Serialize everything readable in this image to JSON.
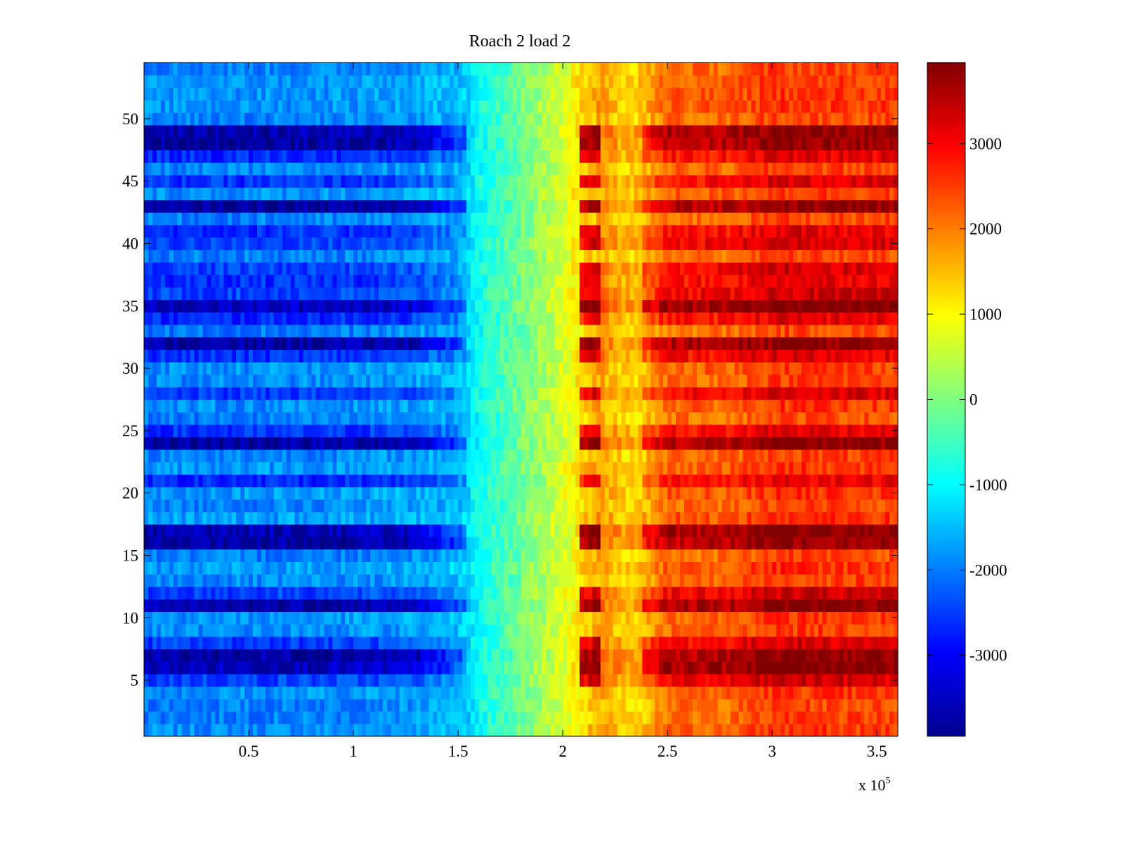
{
  "chart_data": {
    "type": "heatmap",
    "title": "Roach 2 load 2",
    "xlabel": "",
    "ylabel": "",
    "x_multiplier_label": {
      "base": "x 10",
      "exponent": "5"
    },
    "xlim": [
      0,
      3.6
    ],
    "ylim": [
      0.5,
      54.5
    ],
    "x_ticks": [
      0.5,
      1,
      1.5,
      2,
      2.5,
      3,
      3.5
    ],
    "x_tick_labels": [
      "0.5",
      "1",
      "1.5",
      "2",
      "2.5",
      "3",
      "3.5"
    ],
    "y_ticks": [
      5,
      10,
      15,
      20,
      25,
      30,
      35,
      40,
      45,
      50
    ],
    "y_tick_labels": [
      "5",
      "10",
      "15",
      "20",
      "25",
      "30",
      "35",
      "40",
      "45",
      "50"
    ],
    "rows": 54,
    "colorbar": {
      "colormap": "jet",
      "range": [
        -3950,
        3950
      ],
      "ticks": [
        -3000,
        -2000,
        -1000,
        0,
        1000,
        2000,
        3000
      ],
      "tick_labels": [
        "-3000",
        "-2000",
        "-1000",
        "0",
        "1000",
        "2000",
        "3000"
      ]
    },
    "column_profile": {
      "description": "approximate base value by x (x 10^5), shared by all rows",
      "x": [
        0.0,
        0.5,
        1.0,
        1.3,
        1.5,
        1.55,
        1.6,
        1.8,
        2.0,
        2.1,
        2.18,
        2.3,
        2.38,
        2.5,
        2.8,
        3.0,
        3.3,
        3.6
      ],
      "value": [
        -1900,
        -1900,
        -1850,
        -1700,
        -1500,
        -1300,
        -900,
        -100,
        700,
        1300,
        1700,
        1250,
        1400,
        2200,
        2200,
        2550,
        2500,
        2450
      ]
    },
    "strong_rows": {
      "description": "rows with large amplitude (dark blue on left, dark red on right)",
      "rows": [
        6,
        7,
        11,
        16,
        17,
        24,
        32,
        35,
        43,
        48,
        49
      ],
      "left_value": -3600,
      "right_value": 3700
    },
    "medium_rows": {
      "rows": [
        5,
        8,
        12,
        21,
        25,
        28,
        31,
        34,
        36,
        37,
        38,
        40,
        41,
        45,
        47
      ],
      "left_value": -2600,
      "right_value": 3000
    }
  }
}
